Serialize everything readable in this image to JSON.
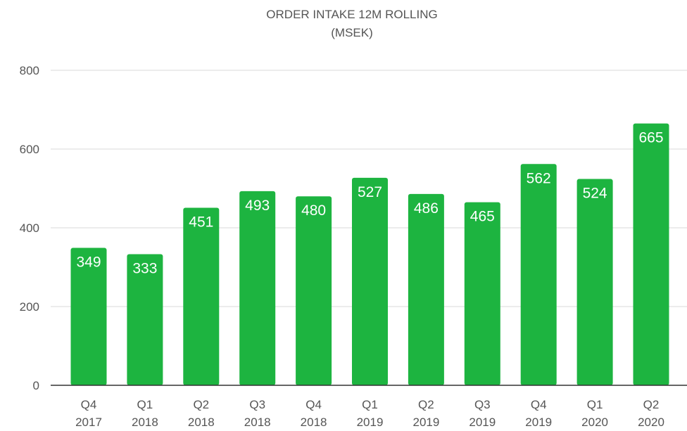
{
  "chart_data": {
    "type": "bar",
    "title": "ORDER INTAKE 12M ROLLING",
    "subtitle": "(MSEK)",
    "categories": [
      [
        "Q4",
        "2017"
      ],
      [
        "Q1",
        "2018"
      ],
      [
        "Q2",
        "2018"
      ],
      [
        "Q3",
        "2018"
      ],
      [
        "Q4",
        "2018"
      ],
      [
        "Q1",
        "2019"
      ],
      [
        "Q2",
        "2019"
      ],
      [
        "Q3",
        "2019"
      ],
      [
        "Q4",
        "2019"
      ],
      [
        "Q1",
        "2020"
      ],
      [
        "Q2",
        "2020"
      ]
    ],
    "values": [
      349,
      333,
      451,
      493,
      480,
      527,
      486,
      465,
      562,
      524,
      665
    ],
    "ylim": [
      0,
      800
    ],
    "yticks": [
      0,
      200,
      400,
      600,
      800
    ],
    "grid": true,
    "legend": "none",
    "bar_color": "#1db440",
    "label_color": "#ffffff"
  }
}
